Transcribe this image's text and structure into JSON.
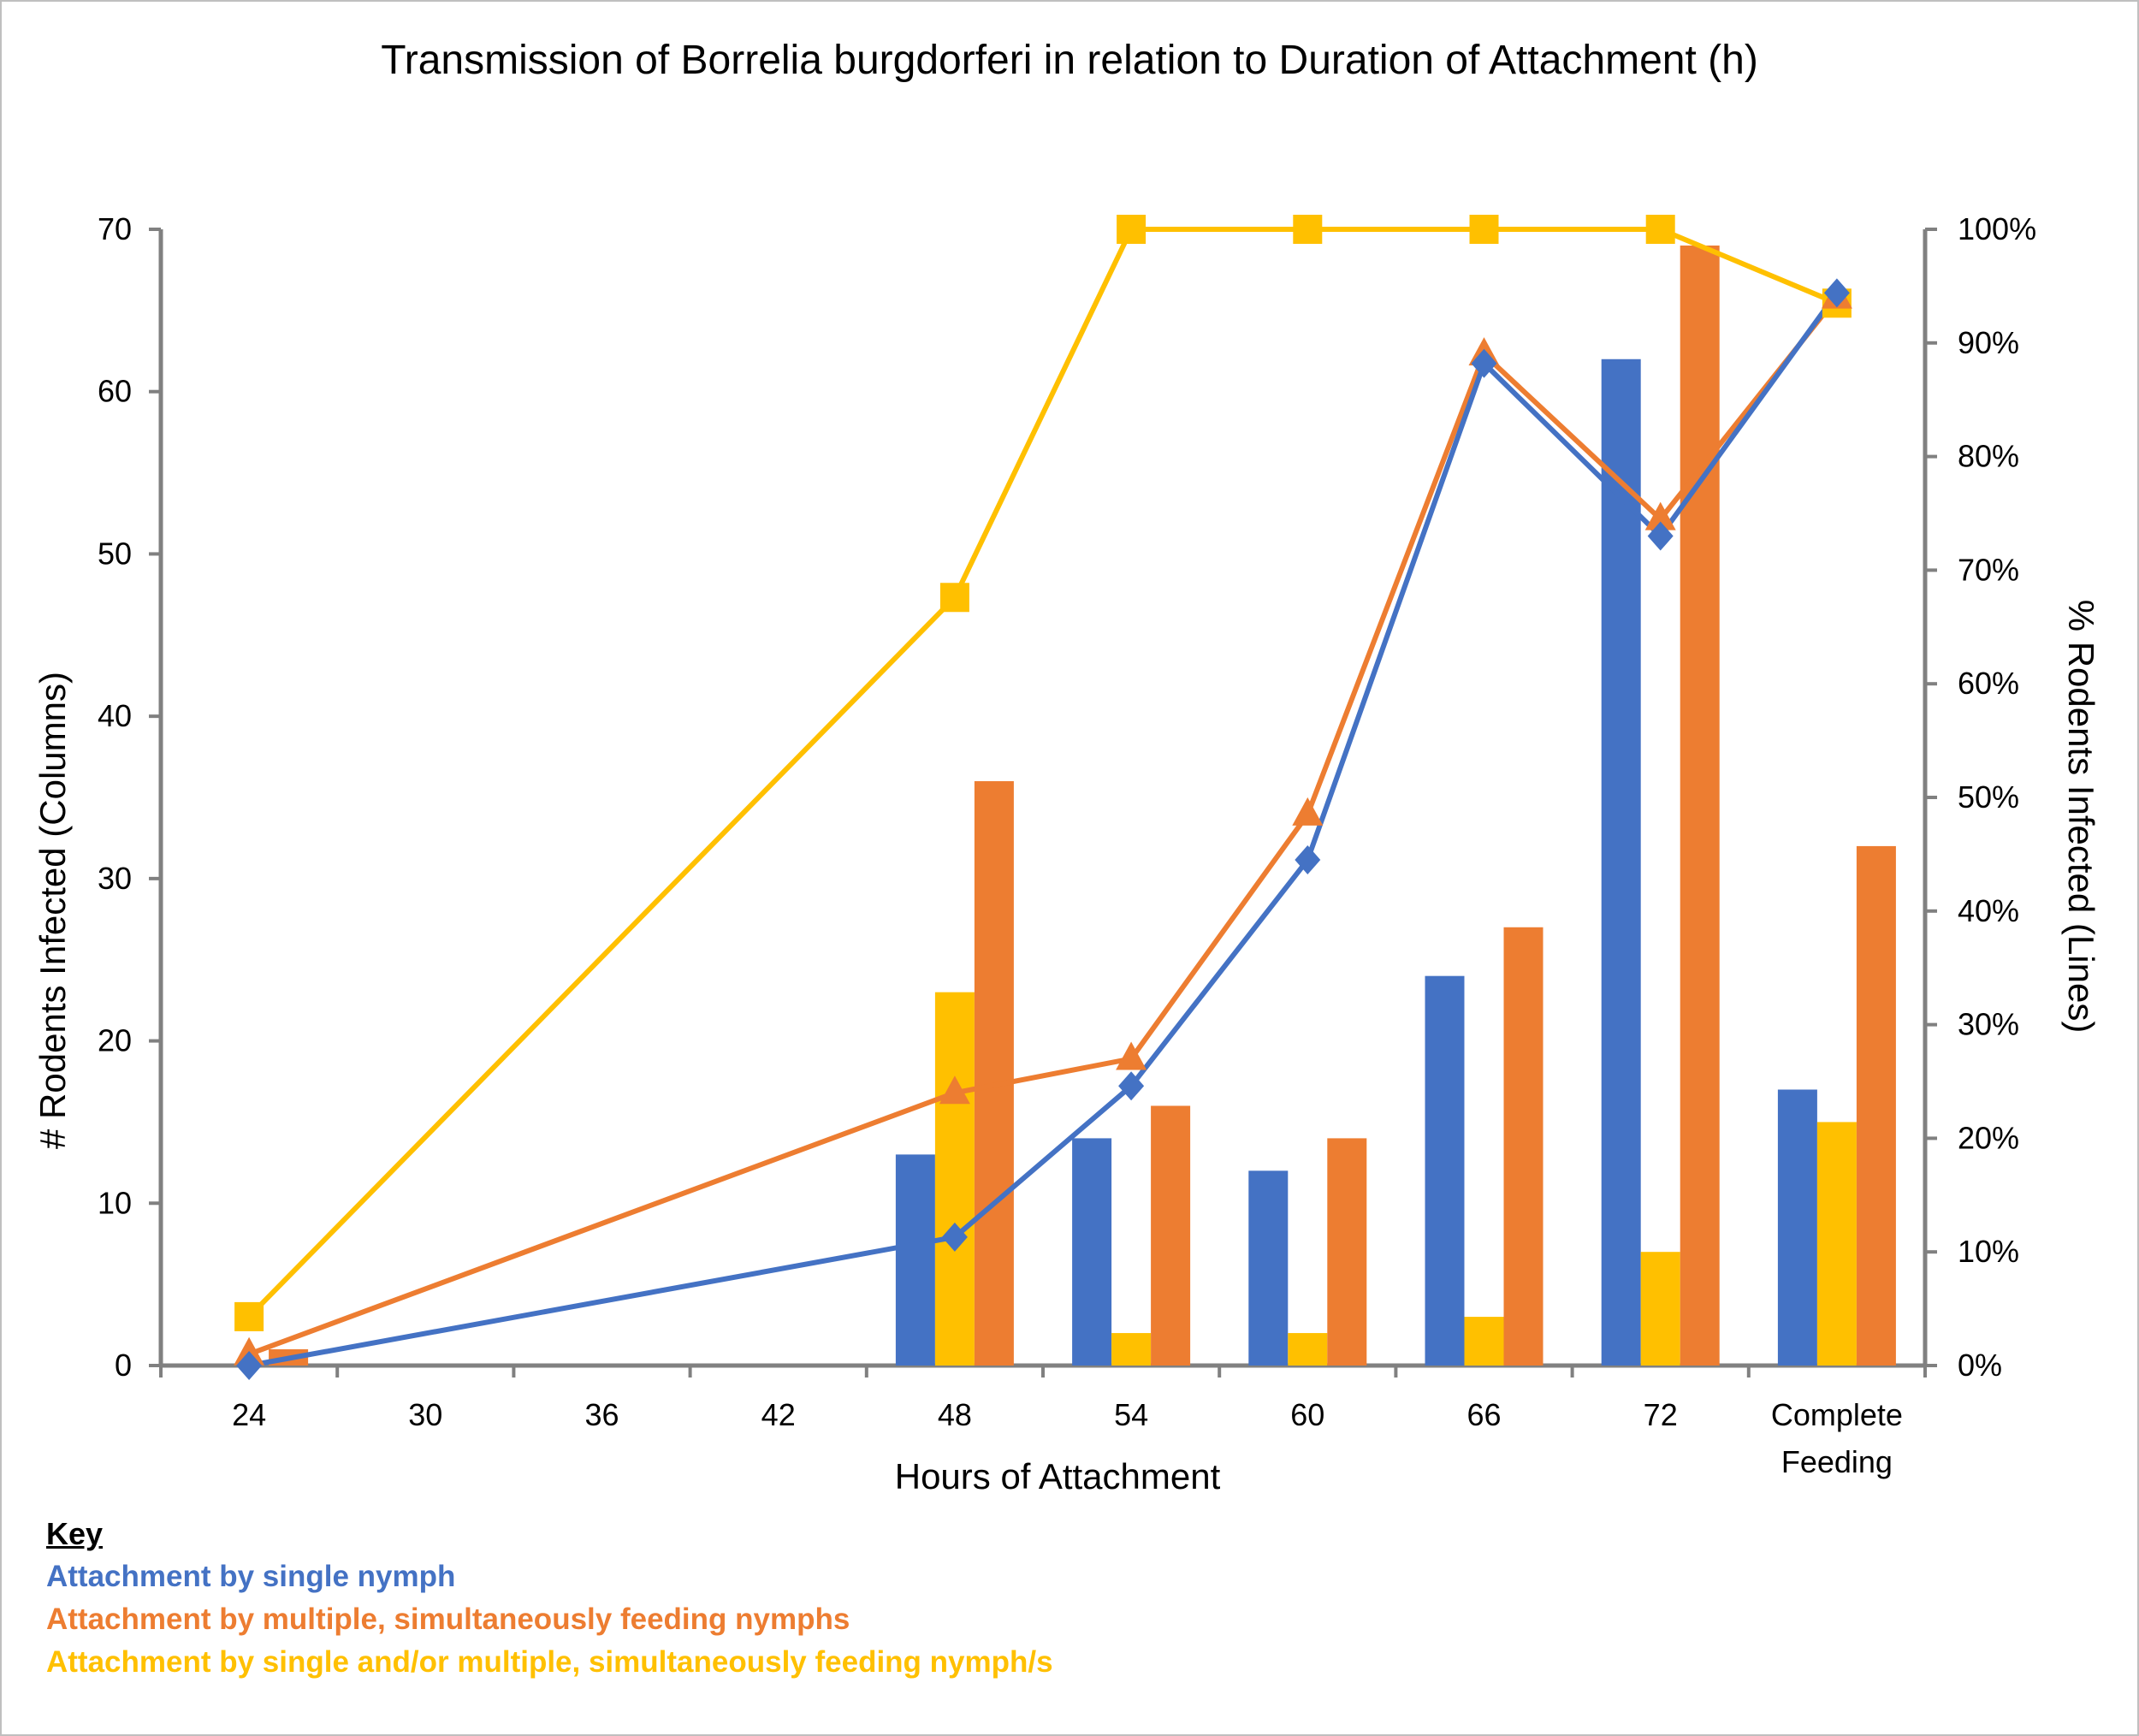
{
  "chart_data": {
    "type": "bar+line",
    "title": "Transmission of Borrelia burgdorferi in relation to Duration of Attachment (h)",
    "xlabel": "Hours of Attachment",
    "ylabel_left": "# Rodents Infected (Columns)",
    "ylabel_right": "% Rodents Infected (Lines)",
    "categories": [
      "24",
      "30",
      "36",
      "42",
      "48",
      "54",
      "60",
      "66",
      "72",
      "Complete\nFeeding"
    ],
    "y_left_range": [
      0,
      70
    ],
    "y_left_ticks": [
      "0",
      "10",
      "20",
      "30",
      "40",
      "50",
      "60",
      "70"
    ],
    "y_right_range": [
      0,
      1.0
    ],
    "y_right_ticks": [
      "0%",
      "10%",
      "20%",
      "30%",
      "40%",
      "50%",
      "60%",
      "70%",
      "80%",
      "90%",
      "100%"
    ],
    "bars": [
      {
        "key": "single",
        "color": "#4472C4",
        "values": [
          null,
          null,
          null,
          null,
          13,
          14,
          12,
          24,
          62,
          17
        ]
      },
      {
        "key": "combined",
        "color": "#FFC000",
        "values": [
          0,
          null,
          null,
          null,
          23,
          2,
          2,
          3,
          7,
          15
        ]
      },
      {
        "key": "multiple",
        "color": "#ED7D31",
        "values": [
          1,
          null,
          null,
          null,
          36,
          16,
          14,
          27,
          69,
          32
        ]
      }
    ],
    "lines": [
      {
        "key": "combined",
        "color": "#FFC000",
        "marker": "square",
        "values": [
          0.043,
          null,
          null,
          null,
          0.676,
          1.0,
          1.0,
          1.0,
          1.0,
          0.935
        ]
      },
      {
        "key": "multiple",
        "color": "#ED7D31",
        "marker": "triangle",
        "values": [
          0.01,
          null,
          null,
          null,
          0.24,
          0.27,
          0.485,
          0.89,
          0.745,
          0.94
        ]
      },
      {
        "key": "single",
        "color": "#4472C4",
        "marker": "diamond",
        "values": [
          0.0,
          null,
          null,
          null,
          0.113,
          0.246,
          0.445,
          0.882,
          0.73,
          0.944
        ]
      }
    ],
    "grid": false,
    "legend": "bottom-left key"
  },
  "key": {
    "heading": "Key",
    "items": [
      {
        "label": "Attachment by single nymph",
        "color": "#4472C4"
      },
      {
        "label": "Attachment by multiple, simultaneously feeding nymphs",
        "color": "#ED7D31"
      },
      {
        "label": "Attachment by single and/or multiple, simultaneously feeding nymph/s",
        "color": "#FFC000"
      }
    ]
  }
}
